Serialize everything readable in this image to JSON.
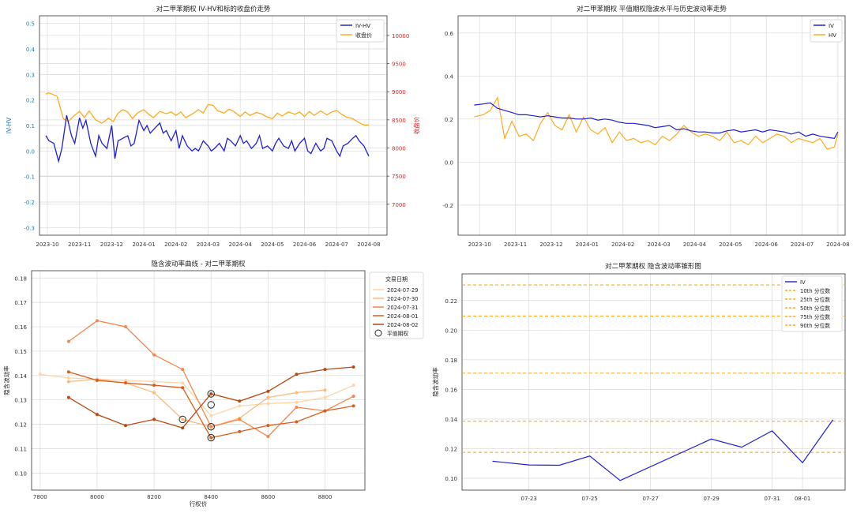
{
  "colors": {
    "blue": "#1f1fd6",
    "orange": "#ffaa1c",
    "red_axis": "#d62728",
    "blue_axis": "#1f77b4",
    "grid": "#d9d9d9"
  },
  "chart_data": [
    {
      "id": "c1",
      "type": "line",
      "title": "对二甲苯期权 IV-HV和标的收盘价走势",
      "ylabel_left": "IV-HV",
      "ylabel_right": "收盘价",
      "x_ticks": [
        "2023-10",
        "2023-11",
        "2023-12",
        "2024-01",
        "2024-02",
        "2024-03",
        "2024-04",
        "2024-05",
        "2024-06",
        "2024-07",
        "2024-08"
      ],
      "x_range": [
        0,
        10.1
      ],
      "y_left_ticks": [
        0.5,
        0.4,
        0.3,
        0.2,
        0.1,
        0.0,
        -0.1,
        -0.2,
        -0.3
      ],
      "y_left_range": [
        -0.33,
        0.53
      ],
      "y_right_ticks": [
        10000,
        9500,
        9000,
        8500,
        8000,
        7500,
        7000
      ],
      "y_right_range": [
        6450,
        10350
      ],
      "legend": [
        "IV-HV",
        "收盘价"
      ],
      "series": [
        {
          "name": "IV-HV",
          "axis": "left",
          "x": [
            -0.05,
            0.05,
            0.2,
            0.35,
            0.45,
            0.6,
            0.75,
            0.85,
            1.0,
            1.1,
            1.2,
            1.35,
            1.5,
            1.6,
            1.7,
            1.85,
            2.0,
            2.1,
            2.2,
            2.35,
            2.5,
            2.6,
            2.7,
            2.85,
            3.0,
            3.1,
            3.2,
            3.35,
            3.5,
            3.6,
            3.7,
            3.85,
            4.0,
            4.1,
            4.2,
            4.35,
            4.5,
            4.6,
            4.7,
            4.85,
            5.0,
            5.1,
            5.2,
            5.35,
            5.5,
            5.6,
            5.7,
            5.85,
            6.0,
            6.1,
            6.2,
            6.35,
            6.5,
            6.6,
            6.7,
            6.85,
            7.0,
            7.1,
            7.2,
            7.35,
            7.5,
            7.6,
            7.7,
            7.85,
            8.0,
            8.1,
            8.2,
            8.35,
            8.5,
            8.6,
            8.7,
            8.85,
            9.0,
            9.1,
            9.2,
            9.35,
            9.5,
            9.6,
            9.7,
            9.85,
            10.0
          ],
          "y": [
            0.06,
            0.04,
            0.03,
            -0.04,
            0.01,
            0.14,
            0.06,
            0.03,
            0.13,
            0.09,
            0.12,
            0.03,
            -0.02,
            0.06,
            0.03,
            0.01,
            0.1,
            -0.03,
            0.04,
            0.05,
            0.06,
            0.02,
            0.03,
            0.12,
            0.08,
            0.1,
            0.07,
            0.09,
            0.11,
            0.07,
            0.08,
            0.04,
            0.08,
            0.01,
            0.06,
            0.02,
            0.0,
            0.01,
            0.0,
            0.04,
            0.02,
            0.0,
            0.01,
            0.03,
            0.0,
            0.05,
            0.04,
            0.02,
            0.06,
            0.03,
            0.04,
            0.01,
            0.03,
            0.06,
            0.01,
            0.02,
            0.0,
            0.03,
            0.05,
            0.02,
            0.01,
            0.04,
            0.0,
            0.03,
            0.05,
            0.0,
            -0.01,
            0.03,
            0.0,
            0.01,
            0.05,
            0.04,
            0.0,
            -0.02,
            0.02,
            0.03,
            0.05,
            0.06,
            0.04,
            0.02,
            -0.02
          ]
        },
        {
          "name": "收盘价",
          "axis": "right",
          "x": [
            -0.05,
            0.05,
            0.3,
            0.5,
            0.65,
            0.8,
            1.0,
            1.15,
            1.3,
            1.5,
            1.7,
            1.9,
            2.05,
            2.2,
            2.35,
            2.5,
            2.65,
            2.8,
            3.0,
            3.15,
            3.3,
            3.5,
            3.7,
            3.85,
            4.0,
            4.15,
            4.3,
            4.5,
            4.7,
            4.85,
            5.0,
            5.15,
            5.3,
            5.5,
            5.65,
            5.8,
            6.0,
            6.15,
            6.3,
            6.5,
            6.65,
            6.8,
            7.0,
            7.15,
            7.3,
            7.5,
            7.7,
            7.85,
            8.0,
            8.15,
            8.3,
            8.5,
            8.7,
            8.85,
            9.0,
            9.15,
            9.3,
            9.5,
            9.7,
            9.85,
            10.0
          ],
          "y": [
            8960,
            8980,
            8920,
            8520,
            8470,
            8560,
            8650,
            8540,
            8660,
            8500,
            8440,
            8530,
            8470,
            8620,
            8680,
            8640,
            8520,
            8620,
            8680,
            8600,
            8540,
            8650,
            8610,
            8640,
            8580,
            8640,
            8540,
            8600,
            8680,
            8620,
            8770,
            8760,
            8660,
            8620,
            8690,
            8650,
            8560,
            8640,
            8580,
            8630,
            8610,
            8560,
            8520,
            8620,
            8570,
            8640,
            8600,
            8640,
            8560,
            8650,
            8580,
            8660,
            8590,
            8640,
            8670,
            8600,
            8550,
            8520,
            8450,
            8410,
            8410
          ]
        }
      ]
    },
    {
      "id": "c2",
      "type": "line",
      "title": "对二甲苯期权 平值期权隐波水平与历史波动率走势",
      "x_ticks": [
        "2023-10",
        "2023-11",
        "2023-12",
        "2024-01",
        "2024-02",
        "2024-03",
        "2024-04",
        "2024-05",
        "2024-06",
        "2024-07",
        "2024-08"
      ],
      "x_range": [
        -0.6,
        10.2
      ],
      "y_ticks": [
        0.6,
        0.4,
        0.2,
        0.0,
        -0.2
      ],
      "y_range": [
        -0.34,
        0.68
      ],
      "legend": [
        "IV",
        "HV"
      ],
      "series": [
        {
          "name": "IV",
          "x": [
            -0.15,
            0.1,
            0.3,
            0.5,
            0.7,
            0.9,
            1.1,
            1.3,
            1.5,
            1.7,
            1.9,
            2.1,
            2.3,
            2.5,
            2.7,
            2.9,
            3.1,
            3.3,
            3.5,
            3.7,
            3.9,
            4.1,
            4.3,
            4.5,
            4.7,
            4.9,
            5.1,
            5.3,
            5.5,
            5.7,
            5.9,
            6.1,
            6.3,
            6.5,
            6.7,
            6.9,
            7.1,
            7.3,
            7.5,
            7.7,
            7.9,
            8.1,
            8.3,
            8.5,
            8.7,
            8.9,
            9.1,
            9.3,
            9.5,
            9.7,
            9.9,
            10.0
          ],
          "y": [
            0.265,
            0.27,
            0.275,
            0.25,
            0.24,
            0.23,
            0.22,
            0.22,
            0.215,
            0.21,
            0.215,
            0.21,
            0.205,
            0.205,
            0.2,
            0.2,
            0.205,
            0.195,
            0.2,
            0.195,
            0.185,
            0.18,
            0.18,
            0.175,
            0.17,
            0.16,
            0.165,
            0.17,
            0.15,
            0.155,
            0.145,
            0.14,
            0.14,
            0.135,
            0.135,
            0.145,
            0.15,
            0.14,
            0.145,
            0.15,
            0.14,
            0.15,
            0.145,
            0.14,
            0.13,
            0.14,
            0.12,
            0.13,
            0.12,
            0.115,
            0.11,
            0.14
          ]
        },
        {
          "name": "HV",
          "x": [
            -0.15,
            0.1,
            0.3,
            0.5,
            0.7,
            0.9,
            1.1,
            1.3,
            1.5,
            1.7,
            1.9,
            2.1,
            2.3,
            2.5,
            2.7,
            2.9,
            3.1,
            3.3,
            3.5,
            3.7,
            3.9,
            4.1,
            4.3,
            4.5,
            4.7,
            4.9,
            5.1,
            5.3,
            5.5,
            5.7,
            5.9,
            6.1,
            6.3,
            6.5,
            6.7,
            6.9,
            7.1,
            7.3,
            7.5,
            7.7,
            7.9,
            8.1,
            8.3,
            8.5,
            8.7,
            8.9,
            9.1,
            9.3,
            9.5,
            9.7,
            9.9,
            10.0
          ],
          "y": [
            0.21,
            0.22,
            0.24,
            0.3,
            0.11,
            0.19,
            0.12,
            0.13,
            0.1,
            0.18,
            0.23,
            0.17,
            0.15,
            0.22,
            0.14,
            0.21,
            0.15,
            0.13,
            0.16,
            0.09,
            0.14,
            0.1,
            0.11,
            0.09,
            0.1,
            0.08,
            0.12,
            0.1,
            0.13,
            0.17,
            0.14,
            0.12,
            0.13,
            0.12,
            0.1,
            0.14,
            0.09,
            0.1,
            0.08,
            0.12,
            0.09,
            0.11,
            0.13,
            0.12,
            0.09,
            0.11,
            0.1,
            0.09,
            0.11,
            0.06,
            0.07,
            0.13
          ]
        }
      ]
    },
    {
      "id": "c3",
      "type": "line",
      "title": "隐含波动率曲线 - 对二甲苯期权",
      "xlabel": "行权价",
      "ylabel": "隐含波动率",
      "x_ticks": [
        7800,
        8000,
        8200,
        8400,
        8600,
        8800
      ],
      "x_range": [
        7770,
        8940
      ],
      "y_ticks": [
        0.18,
        0.17,
        0.16,
        0.15,
        0.14,
        0.13,
        0.12,
        0.11,
        0.1
      ],
      "y_range": [
        0.093,
        0.183
      ],
      "legend_title": "交易日期",
      "legend": [
        "2024-07-29",
        "2024-07-30",
        "2024-07-31",
        "2024-08-01",
        "2024-08-02",
        "平值期权"
      ],
      "series": [
        {
          "name": "2024-07-29",
          "color": "#fdd5a8",
          "x": [
            7800,
            7900,
            8000,
            8100,
            8200,
            8300,
            8400,
            8500,
            8600,
            8700,
            8800,
            8900
          ],
          "y": [
            0.1405,
            0.139,
            0.1385,
            0.138,
            0.1375,
            0.137,
            0.1235,
            0.1275,
            0.1285,
            0.129,
            0.131,
            0.136
          ]
        },
        {
          "name": "2024-07-30",
          "color": "#fdb97d",
          "x": [
            7900,
            8000,
            8100,
            8200,
            8300,
            8400,
            8500,
            8600,
            8700,
            8800
          ],
          "y": [
            0.1375,
            0.1385,
            0.137,
            0.133,
            0.122,
            0.119,
            0.1225,
            0.131,
            0.133,
            0.134
          ]
        },
        {
          "name": "2024-07-31",
          "color": "#f4874b",
          "x": [
            7900,
            8000,
            8100,
            8200,
            8300,
            8400,
            8500,
            8600,
            8700,
            8800,
            8900
          ],
          "y": [
            0.154,
            0.1625,
            0.16,
            0.1485,
            0.1425,
            0.119,
            0.122,
            0.115,
            0.127,
            0.1255,
            0.1315
          ]
        },
        {
          "name": "2024-08-01",
          "color": "#d95d1c",
          "x": [
            7900,
            8000,
            8100,
            8200,
            8300,
            8400,
            8500,
            8600,
            8700,
            8800,
            8900
          ],
          "y": [
            0.1415,
            0.138,
            0.137,
            0.136,
            0.135,
            0.1145,
            0.117,
            0.1195,
            0.121,
            0.1255,
            0.1275
          ]
        },
        {
          "name": "2024-08-02",
          "color": "#b54a12",
          "x": [
            7900,
            8000,
            8100,
            8200,
            8300,
            8400,
            8500,
            8600,
            8700,
            8800,
            8900
          ],
          "y": [
            0.131,
            0.124,
            0.1195,
            0.122,
            0.1185,
            0.1325,
            0.1295,
            0.1335,
            0.1405,
            0.1425,
            0.1435
          ]
        }
      ],
      "atm_points": [
        {
          "x": 8300,
          "y": 0.122
        },
        {
          "x": 8400,
          "y": 0.1325
        },
        {
          "x": 8400,
          "y": 0.128
        },
        {
          "x": 8400,
          "y": 0.119
        },
        {
          "x": 8400,
          "y": 0.1145
        }
      ]
    },
    {
      "id": "c4",
      "type": "line",
      "title": "对二甲苯期权 隐含波动率锥形图",
      "ylabel": "隐含波动率",
      "x_ticks": [
        {
          "label": "07-23",
          "x": 2
        },
        {
          "label": "07-25",
          "x": 4
        },
        {
          "label": "07-27",
          "x": 6
        },
        {
          "label": "07-29",
          "x": 8
        },
        {
          "label": "07-31",
          "x": 10
        },
        {
          "label": "08-01",
          "x": 11
        }
      ],
      "x_range": [
        -0.2,
        12.4
      ],
      "y_ticks": [
        0.22,
        0.2,
        0.18,
        0.16,
        0.14,
        0.12,
        0.1
      ],
      "y_range": [
        0.092,
        0.238
      ],
      "legend": [
        "IV",
        "10th 分位数",
        "25th 分位数",
        "50th 分位数",
        "75th 分位数",
        "90th 分位数"
      ],
      "series": [
        {
          "name": "IV",
          "x": [
            0.8,
            2,
            3,
            4,
            5,
            8,
            9,
            10,
            11,
            12
          ],
          "y": [
            0.1115,
            0.109,
            0.1088,
            0.115,
            0.0985,
            0.1265,
            0.121,
            0.132,
            0.1105,
            0.1395
          ]
        }
      ],
      "quantiles": [
        {
          "name": "10th 分位数",
          "y": 0.1175
        },
        {
          "name": "25th 分位数",
          "y": 0.1385
        },
        {
          "name": "50th 分位数",
          "y": 0.171
        },
        {
          "name": "75th 分位数",
          "y": 0.2095
        },
        {
          "name": "90th 分位数",
          "y": 0.2305
        }
      ]
    }
  ]
}
